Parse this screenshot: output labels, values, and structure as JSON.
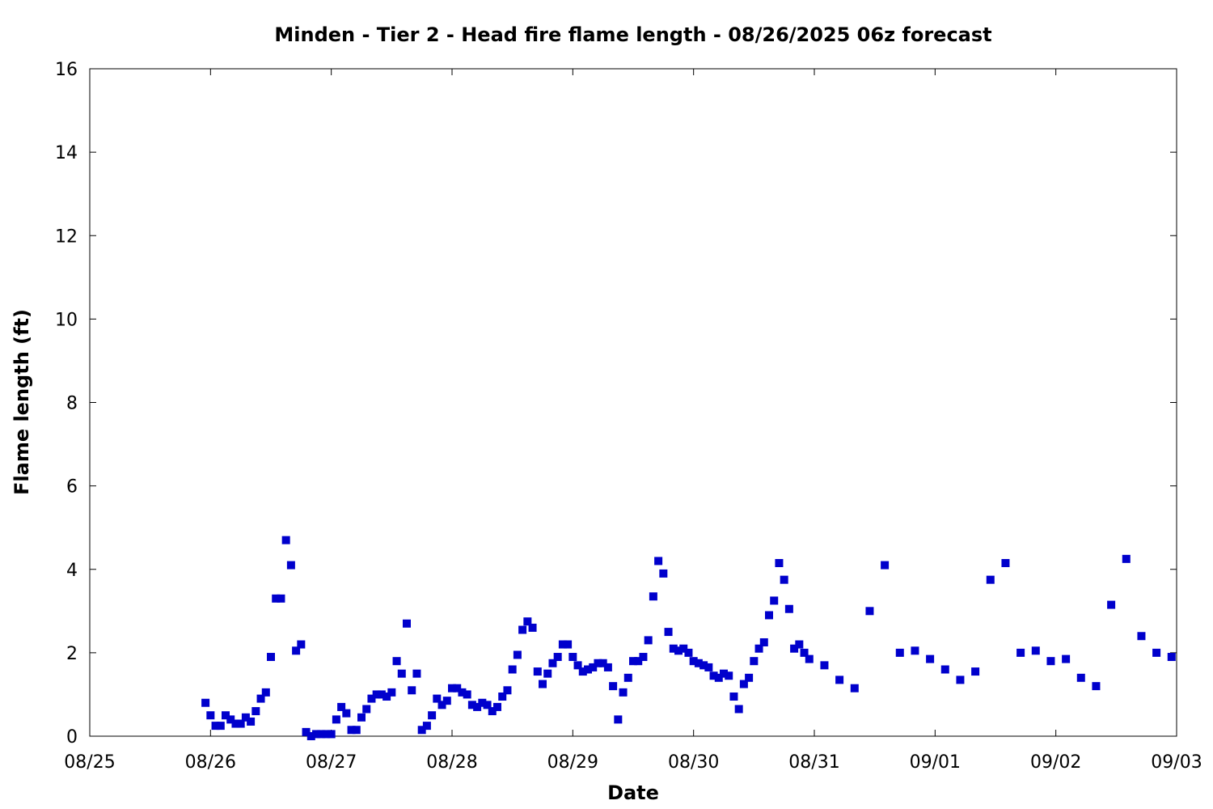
{
  "chart_data": {
    "type": "scatter",
    "title": "Minden - Tier 2 - Head fire flame length - 08/26/2025 06z forecast",
    "xlabel": "Date",
    "ylabel": "Flame length (ft)",
    "xlim": [
      "2025-08-25 00:00",
      "2025-09-03 00:00"
    ],
    "ylim": [
      0,
      16
    ],
    "x_tick_labels": [
      "08/25",
      "08/26",
      "08/27",
      "08/28",
      "08/29",
      "08/30",
      "08/31",
      "09/01",
      "09/02",
      "09/03"
    ],
    "y_tick_labels": [
      "0",
      "2",
      "4",
      "6",
      "8",
      "10",
      "12",
      "14",
      "16"
    ],
    "y_ticks": [
      0,
      2,
      4,
      6,
      8,
      10,
      12,
      14,
      16
    ],
    "grid": false,
    "legend": "none",
    "marker_color": "#0000cc",
    "series": [
      {
        "x": [
          "2025-08-25 23:00",
          "2025-08-26 00:00",
          "2025-08-26 01:00",
          "2025-08-26 02:00",
          "2025-08-26 03:00",
          "2025-08-26 04:00",
          "2025-08-26 05:00",
          "2025-08-26 06:00",
          "2025-08-26 07:00",
          "2025-08-26 08:00",
          "2025-08-26 09:00",
          "2025-08-26 10:00",
          "2025-08-26 11:00",
          "2025-08-26 12:00",
          "2025-08-26 13:00",
          "2025-08-26 14:00",
          "2025-08-26 15:00",
          "2025-08-26 16:00",
          "2025-08-26 17:00",
          "2025-08-26 18:00",
          "2025-08-26 19:00",
          "2025-08-26 20:00",
          "2025-08-26 21:00",
          "2025-08-26 22:00",
          "2025-08-26 23:00",
          "2025-08-27 00:00",
          "2025-08-27 01:00",
          "2025-08-27 02:00",
          "2025-08-27 03:00",
          "2025-08-27 04:00",
          "2025-08-27 05:00",
          "2025-08-27 06:00",
          "2025-08-27 07:00",
          "2025-08-27 08:00",
          "2025-08-27 09:00",
          "2025-08-27 10:00",
          "2025-08-27 11:00",
          "2025-08-27 12:00",
          "2025-08-27 13:00",
          "2025-08-27 14:00",
          "2025-08-27 15:00",
          "2025-08-27 16:00",
          "2025-08-27 17:00",
          "2025-08-27 18:00",
          "2025-08-27 19:00",
          "2025-08-27 20:00",
          "2025-08-27 21:00",
          "2025-08-27 22:00",
          "2025-08-27 23:00",
          "2025-08-28 00:00",
          "2025-08-28 01:00",
          "2025-08-28 02:00",
          "2025-08-28 03:00",
          "2025-08-28 04:00",
          "2025-08-28 05:00",
          "2025-08-28 06:00",
          "2025-08-28 07:00",
          "2025-08-28 08:00",
          "2025-08-28 09:00",
          "2025-08-28 10:00",
          "2025-08-28 11:00",
          "2025-08-28 12:00",
          "2025-08-28 13:00",
          "2025-08-28 14:00",
          "2025-08-28 15:00",
          "2025-08-28 16:00",
          "2025-08-28 17:00",
          "2025-08-28 18:00",
          "2025-08-28 19:00",
          "2025-08-28 20:00",
          "2025-08-28 21:00",
          "2025-08-28 22:00",
          "2025-08-28 23:00",
          "2025-08-29 00:00",
          "2025-08-29 01:00",
          "2025-08-29 02:00",
          "2025-08-29 03:00",
          "2025-08-29 04:00",
          "2025-08-29 05:00",
          "2025-08-29 06:00",
          "2025-08-29 07:00",
          "2025-08-29 08:00",
          "2025-08-29 09:00",
          "2025-08-29 10:00",
          "2025-08-29 11:00",
          "2025-08-29 12:00",
          "2025-08-29 13:00",
          "2025-08-29 14:00",
          "2025-08-29 15:00",
          "2025-08-29 16:00",
          "2025-08-29 17:00",
          "2025-08-29 18:00",
          "2025-08-29 19:00",
          "2025-08-29 20:00",
          "2025-08-29 21:00",
          "2025-08-29 22:00",
          "2025-08-29 23:00",
          "2025-08-30 00:00",
          "2025-08-30 01:00",
          "2025-08-30 02:00",
          "2025-08-30 03:00",
          "2025-08-30 04:00",
          "2025-08-30 05:00",
          "2025-08-30 06:00",
          "2025-08-30 07:00",
          "2025-08-30 08:00",
          "2025-08-30 09:00",
          "2025-08-30 10:00",
          "2025-08-30 11:00",
          "2025-08-30 12:00",
          "2025-08-30 13:00",
          "2025-08-30 14:00",
          "2025-08-30 15:00",
          "2025-08-30 16:00",
          "2025-08-30 17:00",
          "2025-08-30 18:00",
          "2025-08-30 19:00",
          "2025-08-30 20:00",
          "2025-08-30 21:00",
          "2025-08-30 22:00",
          "2025-08-30 23:00",
          "2025-08-31 02:00",
          "2025-08-31 05:00",
          "2025-08-31 08:00",
          "2025-08-31 11:00",
          "2025-08-31 14:00",
          "2025-08-31 17:00",
          "2025-08-31 20:00",
          "2025-08-31 23:00",
          "2025-09-01 02:00",
          "2025-09-01 05:00",
          "2025-09-01 08:00",
          "2025-09-01 11:00",
          "2025-09-01 14:00",
          "2025-09-01 17:00",
          "2025-09-01 20:00",
          "2025-09-01 23:00",
          "2025-09-02 02:00",
          "2025-09-02 05:00",
          "2025-09-02 08:00",
          "2025-09-02 11:00",
          "2025-09-02 14:00",
          "2025-09-02 17:00",
          "2025-09-02 20:00",
          "2025-09-02 23:00"
        ],
        "y": [
          0.8,
          0.5,
          0.25,
          0.25,
          0.5,
          0.4,
          0.3,
          0.3,
          0.45,
          0.35,
          0.6,
          0.9,
          1.05,
          1.9,
          3.3,
          3.3,
          4.7,
          4.1,
          2.05,
          2.2,
          0.1,
          0.0,
          0.05,
          0.05,
          0.05,
          0.05,
          0.4,
          0.7,
          0.55,
          0.15,
          0.15,
          0.45,
          0.65,
          0.9,
          1.0,
          1.0,
          0.95,
          1.05,
          1.8,
          1.5,
          2.7,
          1.1,
          1.5,
          0.15,
          0.25,
          0.5,
          0.9,
          0.75,
          0.85,
          1.15,
          1.15,
          1.05,
          1.0,
          0.75,
          0.7,
          0.8,
          0.75,
          0.6,
          0.7,
          0.95,
          1.1,
          1.6,
          1.95,
          2.55,
          2.75,
          2.6,
          1.55,
          1.25,
          1.5,
          1.75,
          1.9,
          2.2,
          2.2,
          1.9,
          1.7,
          1.55,
          1.6,
          1.65,
          1.75,
          1.75,
          1.65,
          1.2,
          0.4,
          1.05,
          1.4,
          1.8,
          1.8,
          1.9,
          2.3,
          3.35,
          4.2,
          3.9,
          2.5,
          2.1,
          2.05,
          2.1,
          2.0,
          1.8,
          1.75,
          1.7,
          1.65,
          1.45,
          1.4,
          1.5,
          1.45,
          0.95,
          0.65,
          1.25,
          1.4,
          1.8,
          2.1,
          2.25,
          2.9,
          3.25,
          4.15,
          3.75,
          3.05,
          2.1,
          2.2,
          2.0,
          1.85,
          1.7,
          1.35,
          1.15,
          3.0,
          4.1,
          2.0,
          2.05,
          1.85,
          1.6,
          1.35,
          1.55,
          3.75,
          4.15,
          2.0,
          2.05,
          1.8,
          1.85,
          1.4,
          1.2,
          3.15,
          4.25,
          2.4,
          2.0,
          1.9
        ]
      }
    ]
  }
}
